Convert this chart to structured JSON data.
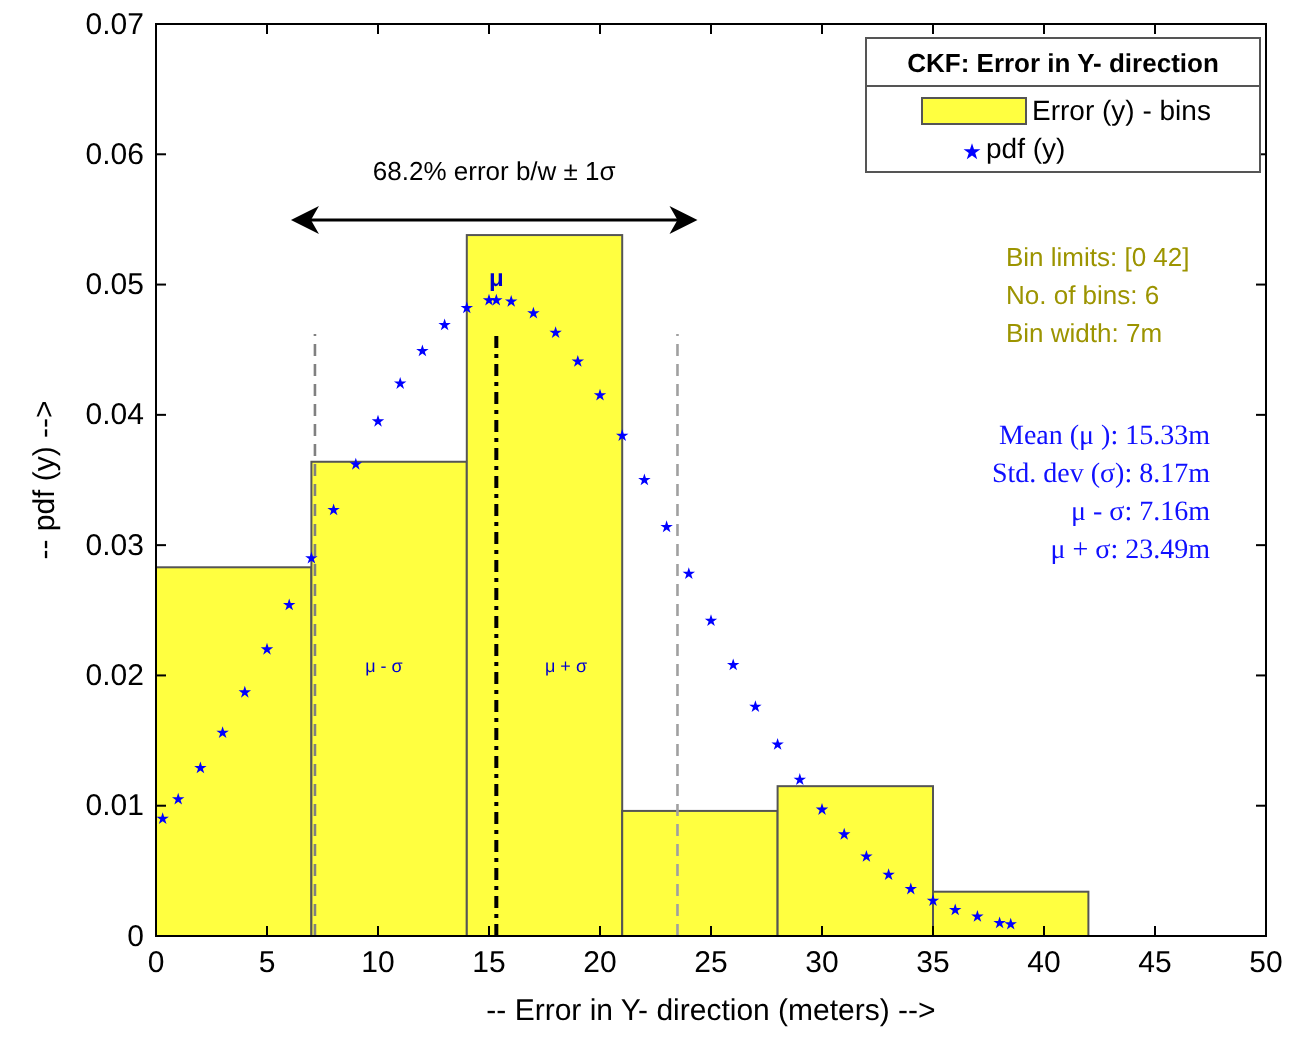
{
  "chart_data": {
    "type": "histogram",
    "xlabel": "-- Error in Y- direction (meters) -->",
    "ylabel": "-- pdf (y) -->",
    "legend_title": "CKF: Error in Y- direction",
    "legend": "top right",
    "grid": false,
    "xlim": [
      0,
      50
    ],
    "xticks": [
      0,
      5,
      10,
      15,
      20,
      25,
      30,
      35,
      40,
      45,
      50
    ],
    "ylim": [
      0,
      0.07
    ],
    "yticks": [
      0,
      0.01,
      0.02,
      0.03,
      0.04,
      0.05,
      0.06,
      0.07
    ],
    "series": [
      {
        "name": "Error (y) - bins",
        "color": "#ffff40",
        "bins": [
          0,
          7,
          14,
          21,
          28,
          35,
          42
        ],
        "values": [
          0.0283,
          0.0364,
          0.0538,
          0.0096,
          0.0115,
          0.0034
        ]
      },
      {
        "type": "scatter",
        "name": "pdf (y)",
        "color": "#0000ff",
        "marker": "star",
        "x": [
          0.3,
          1,
          2,
          3,
          4,
          5,
          6,
          7,
          8,
          9,
          10,
          11,
          12,
          13,
          14,
          15,
          15.33,
          16,
          17,
          18,
          19,
          20,
          21,
          22,
          23,
          24,
          25,
          26,
          27,
          28,
          29,
          30,
          31,
          32,
          33,
          34,
          35,
          36,
          37,
          38,
          38.5
        ],
        "values": [
          0.009,
          0.0105,
          0.0129,
          0.0156,
          0.0187,
          0.022,
          0.0254,
          0.029,
          0.0327,
          0.0362,
          0.0395,
          0.0424,
          0.0449,
          0.0469,
          0.0482,
          0.0488,
          0.0488,
          0.0487,
          0.0478,
          0.0463,
          0.0441,
          0.0415,
          0.0384,
          0.035,
          0.0314,
          0.0278,
          0.0242,
          0.0208,
          0.0176,
          0.0147,
          0.012,
          0.0097,
          0.0078,
          0.0061,
          0.0047,
          0.0036,
          0.0027,
          0.002,
          0.0015,
          0.001,
          0.0009
        ]
      }
    ],
    "ref_lines": [
      {
        "axis": "x",
        "value": 7.16,
        "color": "#808080",
        "line_style": "dashed"
      },
      {
        "axis": "x",
        "value": 15.33,
        "label": "μ",
        "color": "#000000",
        "line_style": "dashdot"
      },
      {
        "axis": "x",
        "value": 23.49,
        "color": "#a0a0a0",
        "line_style": "dashed"
      }
    ],
    "annotations": [
      "68.2% error  b/w  ± 1σ",
      "μ - σ",
      "μ + σ",
      "Bin limits: [0 42]",
      "No. of bins: 6",
      "Bin width: 7m",
      "Mean (μ ): 15.33m",
      "Std. dev (σ): 8.17m",
      "μ - σ: 7.16m",
      "μ + σ: 23.49m"
    ]
  }
}
